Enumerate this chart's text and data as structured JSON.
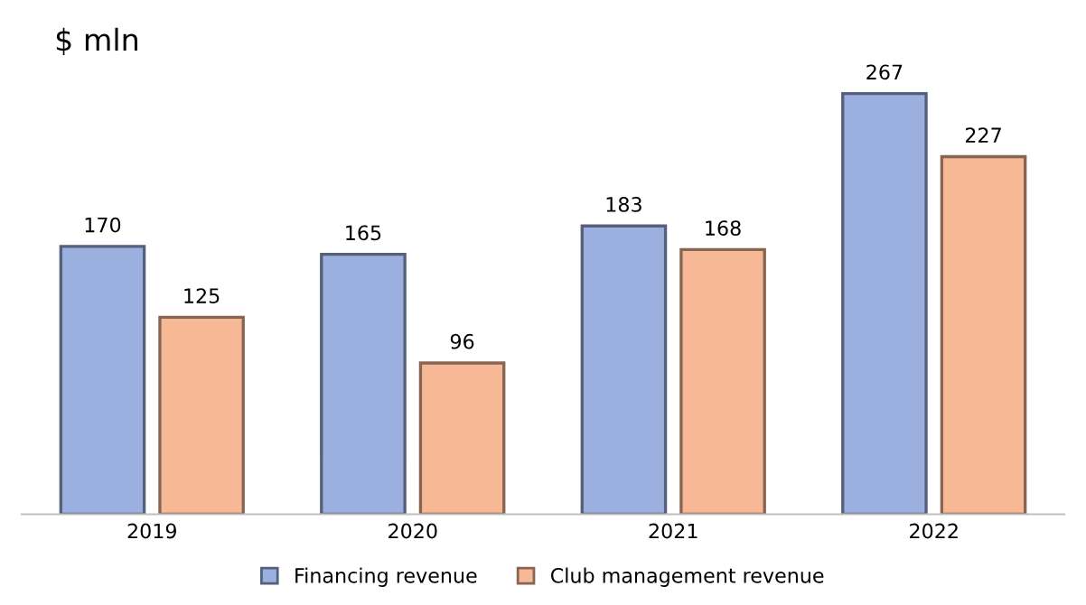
{
  "chart_data": {
    "type": "bar",
    "title": "$ mln",
    "categories": [
      "2019",
      "2020",
      "2021",
      "2022"
    ],
    "series": [
      {
        "name": "Financing revenue",
        "color": "#9bb0df",
        "values": [
          170,
          165,
          183,
          267
        ]
      },
      {
        "name": "Club management revenue",
        "color": "#f7b896",
        "values": [
          125,
          96,
          168,
          227
        ]
      }
    ],
    "data_labels": true,
    "legend": "bottom",
    "grid": false
  }
}
